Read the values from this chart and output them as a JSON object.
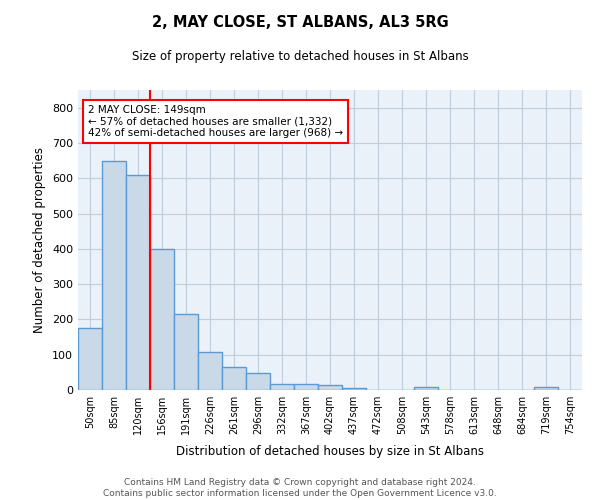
{
  "title1": "2, MAY CLOSE, ST ALBANS, AL3 5RG",
  "title2": "Size of property relative to detached houses in St Albans",
  "xlabel": "Distribution of detached houses by size in St Albans",
  "ylabel": "Number of detached properties",
  "footer": "Contains HM Land Registry data © Crown copyright and database right 2024.\nContains public sector information licensed under the Open Government Licence v3.0.",
  "bin_labels": [
    "50sqm",
    "85sqm",
    "120sqm",
    "156sqm",
    "191sqm",
    "226sqm",
    "261sqm",
    "296sqm",
    "332sqm",
    "367sqm",
    "402sqm",
    "437sqm",
    "472sqm",
    "508sqm",
    "543sqm",
    "578sqm",
    "613sqm",
    "648sqm",
    "684sqm",
    "719sqm",
    "754sqm"
  ],
  "bar_heights": [
    175,
    650,
    610,
    400,
    215,
    108,
    65,
    47,
    17,
    16,
    13,
    7,
    0,
    0,
    8,
    0,
    0,
    0,
    0,
    8,
    0
  ],
  "bar_color": "#c9d9e8",
  "bar_edge_color": "#5b9bd5",
  "bar_edge_width": 1.0,
  "grid_color": "#c0cfe0",
  "background_color": "#eaf1f8",
  "red_line_x": 2.5,
  "annotation_text": "2 MAY CLOSE: 149sqm\n← 57% of detached houses are smaller (1,332)\n42% of semi-detached houses are larger (968) →",
  "ylim": [
    0,
    850
  ],
  "yticks": [
    0,
    100,
    200,
    300,
    400,
    500,
    600,
    700,
    800
  ]
}
